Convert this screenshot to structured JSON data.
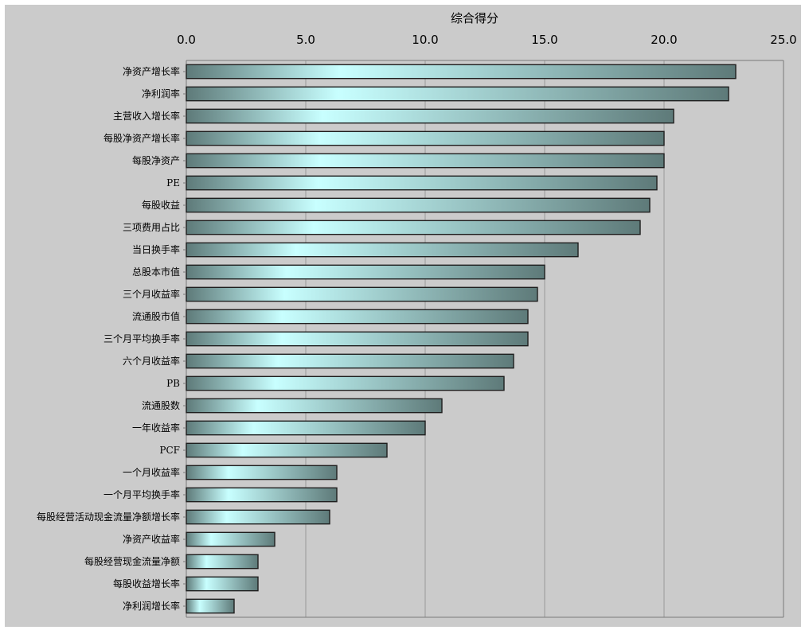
{
  "chart_data": {
    "type": "bar",
    "orientation": "horizontal",
    "title": "综合得分",
    "xlabel": "",
    "ylabel": "",
    "xlim": [
      0,
      25
    ],
    "x_ticks": [
      "0.0",
      "5.0",
      "10.0",
      "15.0",
      "20.0",
      "25.0"
    ],
    "x_axis_position": "top",
    "grid": "vertical",
    "legend": "none",
    "categories": [
      "净资产增长率",
      "净利润率",
      "主营收入增长率",
      "每股净资产增长率",
      "每股净资产",
      "PE",
      "每股收益",
      "三项费用占比",
      "当日换手率",
      "总股本市值",
      "三个月收益率",
      "流通股市值",
      "三个月平均换手率",
      "六个月收益率",
      "PB",
      "流通股数",
      "一年收益率",
      "PCF",
      "一个月收益率",
      "一个月平均换手率",
      "每股经营活动现金流量净额增长率",
      "净资产收益率",
      "每股经营现金流量净额",
      "每股收益增长率",
      "净利润增长率"
    ],
    "values": [
      23.0,
      22.7,
      20.4,
      20.0,
      20.0,
      19.7,
      19.4,
      19.0,
      16.4,
      15.0,
      14.7,
      14.3,
      14.3,
      13.7,
      13.3,
      10.7,
      10.0,
      8.4,
      6.3,
      6.3,
      6.0,
      3.7,
      3.0,
      3.0,
      2.0
    ],
    "colors": {
      "background": "#cbcbcb",
      "bar_dark": "#5e7a79",
      "bar_light": "#c8ffff",
      "bar_border": "#1e1e1e",
      "grid": "#9a9a9a",
      "axis": "#7a7a7a"
    }
  }
}
